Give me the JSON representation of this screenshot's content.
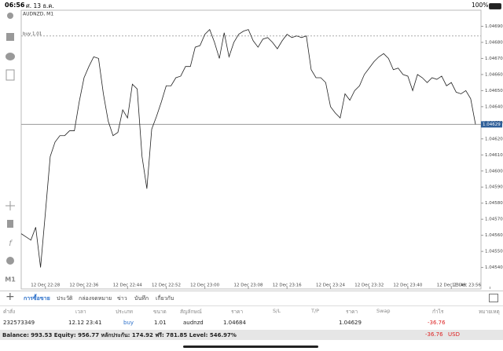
{
  "status_bar": {
    "time": "06:56",
    "date": "ศ. 13 ธ.ค.",
    "battery": "100%"
  },
  "chart": {
    "type": "line",
    "symbol_label": "AUDNZD, M1",
    "timeframe_button": "M1",
    "values": [
      1.04561,
      1.04559,
      1.04557,
      1.04565,
      1.0454,
      1.04574,
      1.04609,
      1.04618,
      1.04622,
      1.04622,
      1.04625,
      1.04625,
      1.04643,
      1.04658,
      1.04665,
      1.04671,
      1.0467,
      1.04648,
      1.04631,
      1.04622,
      1.04624,
      1.04638,
      1.04633,
      1.04654,
      1.04651,
      1.04609,
      1.04589,
      1.04626,
      1.04634,
      1.04643,
      1.04653,
      1.04653,
      1.04658,
      1.04659,
      1.04665,
      1.04665,
      1.04677,
      1.04678,
      1.04685,
      1.04688,
      1.0468,
      1.0467,
      1.04686,
      1.04671,
      1.0468,
      1.04685,
      1.04687,
      1.04688,
      1.04681,
      1.04677,
      1.04682,
      1.04683,
      1.0468,
      1.04676,
      1.04681,
      1.04685,
      1.04683,
      1.04684,
      1.04683,
      1.04684,
      1.04663,
      1.04658,
      1.04658,
      1.04655,
      1.0464,
      1.04636,
      1.04633,
      1.04648,
      1.04644,
      1.0465,
      1.04653,
      1.0466,
      1.04664,
      1.04668,
      1.04671,
      1.04673,
      1.0467,
      1.04663,
      1.04664,
      1.0466,
      1.04659,
      1.0465,
      1.0466,
      1.04658,
      1.04655,
      1.04658,
      1.04657,
      1.04659,
      1.04653,
      1.04655,
      1.04649,
      1.04648,
      1.0465,
      1.04645,
      1.04629
    ],
    "color": "#222222",
    "xlim": [
      0,
      94
    ],
    "xticks": [
      {
        "value": 5,
        "label": "12 Dec 22:28"
      },
      {
        "value": 13,
        "label": "12 Dec 22:36"
      },
      {
        "value": 22,
        "label": "12 Dec 22:44"
      },
      {
        "value": 30,
        "label": "12 Dec 22:52"
      },
      {
        "value": 38,
        "label": "12 Dec 23:00"
      },
      {
        "value": 47,
        "label": "12 Dec 23:08"
      },
      {
        "value": 55,
        "label": "12 Dec 23:16"
      },
      {
        "value": 64,
        "label": "12 Dec 23:24"
      },
      {
        "value": 72,
        "label": "12 Dec 23:32"
      },
      {
        "value": 80,
        "label": "12 Dec 23:40"
      },
      {
        "value": 89,
        "label": "12 Dec 23:48"
      },
      {
        "value": 97,
        "label": "12 Dec 23:56"
      }
    ],
    "ylim": [
      1.04532,
      1.047
    ],
    "yticks": [
      {
        "value": 1.0454,
        "label": "1.04540"
      },
      {
        "value": 1.0455,
        "label": "1.04550"
      },
      {
        "value": 1.0456,
        "label": "1.04560"
      },
      {
        "value": 1.0457,
        "label": "1.04570"
      },
      {
        "value": 1.0458,
        "label": "1.04580"
      },
      {
        "value": 1.0459,
        "label": "1.04590"
      },
      {
        "value": 1.046,
        "label": "1.04600"
      },
      {
        "value": 1.0461,
        "label": "1.04610"
      },
      {
        "value": 1.0462,
        "label": "1.04620"
      },
      {
        "value": 1.0463,
        "label": "1.04630"
      },
      {
        "value": 1.0464,
        "label": "1.04640"
      },
      {
        "value": 1.0465,
        "label": "1.04650"
      },
      {
        "value": 1.0466,
        "label": "1.04660"
      },
      {
        "value": 1.0467,
        "label": "1.04670"
      },
      {
        "value": 1.0468,
        "label": "1.04680"
      },
      {
        "value": 1.0469,
        "label": "1.04690"
      }
    ],
    "order_line": {
      "label": "buy 1.01",
      "value": 1.04684
    },
    "price_line": {
      "value": 1.04629,
      "label": "1.04629"
    }
  },
  "tabs": [
    "การซื้อขาย",
    "ประวัติ",
    "กล่องจดหมาย",
    "ข่าว",
    "บันทึก",
    "เกี่ยวกับ"
  ],
  "table": {
    "columns": [
      "คำสั่ง",
      "เวลา",
      "ประเภท",
      "ขนาด",
      "สัญลักษณ์",
      "ราคา",
      "S/L",
      "T/P",
      "ราคา",
      "Swap",
      "กำไร",
      "หมายเหตุ"
    ],
    "rows": [
      [
        "232573349",
        "12.12 23:41",
        "buy",
        "1.01",
        "audnzd",
        "1.04684",
        "",
        "",
        "1.04629",
        "",
        "-36.76",
        ""
      ]
    ]
  },
  "footer": {
    "summary": "Balance: 993.53 Equity: 956.77 หลักประกัน: 174.92 ฟรี: 781.85 Level: 546.97%",
    "profit": "-36.76",
    "currency": "USD"
  }
}
